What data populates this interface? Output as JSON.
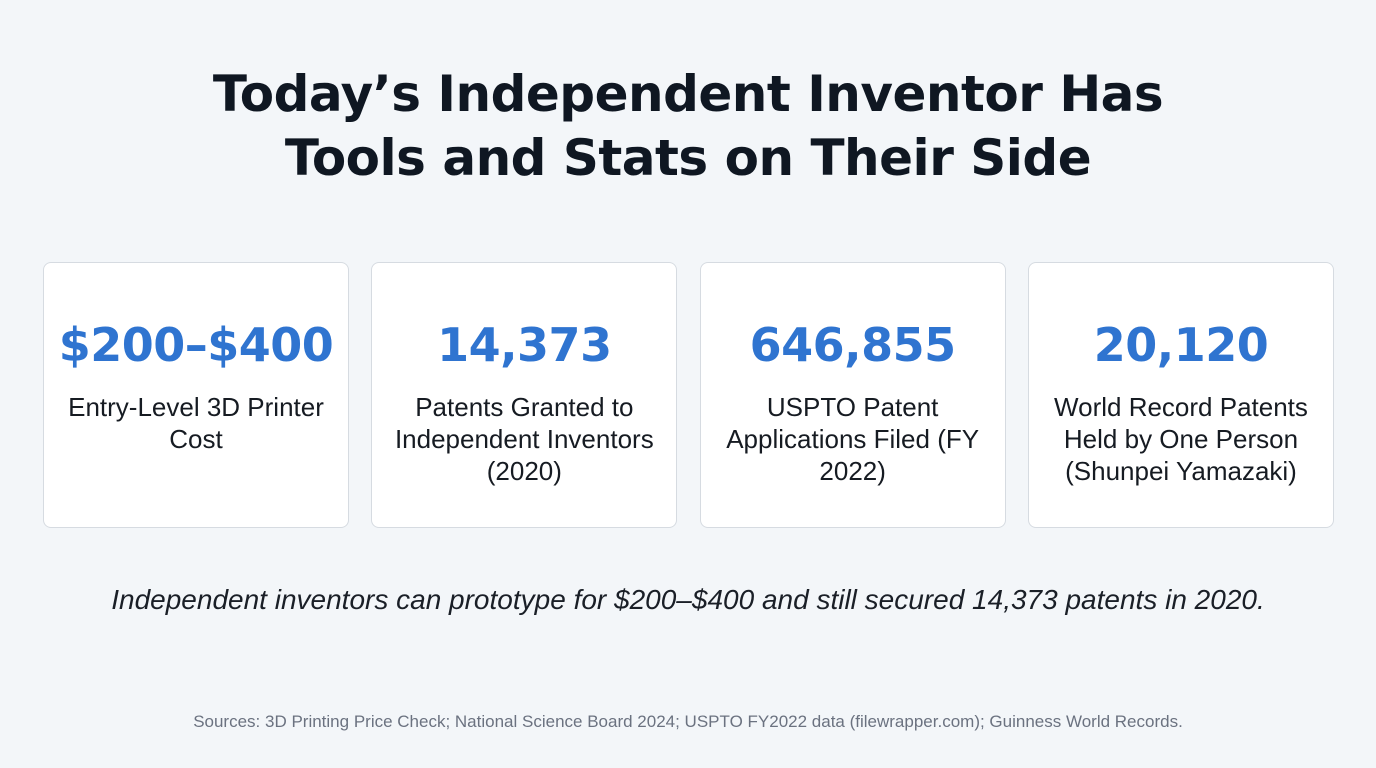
{
  "title": {
    "line1": "Today’s Independent Inventor Has",
    "line2": "Tools and Stats on Their Side"
  },
  "stats": [
    {
      "value": "$200–$400",
      "label": "Entry-Level 3D Printer Cost"
    },
    {
      "value": "14,373",
      "label": "Patents Granted to Independent Inventors (2020)"
    },
    {
      "value": "646,855",
      "label": "USPTO Patent Applications Filed (FY 2022)"
    },
    {
      "value": "20,120",
      "label": "World Record Patents Held by One Person (Shunpei Yamazaki)"
    }
  ],
  "summary": "Independent inventors can prototype for $200–$400 and still secured 14,373 patents in 2020.",
  "sources": "Sources: 3D Printing Price Check; National Science Board 2024; USPTO FY2022 data (filewrapper.com); Guinness World Records.",
  "colors": {
    "background": "#f3f6f9",
    "accent": "#2f74d0",
    "title": "#0f1722",
    "muted": "#6b7280"
  }
}
